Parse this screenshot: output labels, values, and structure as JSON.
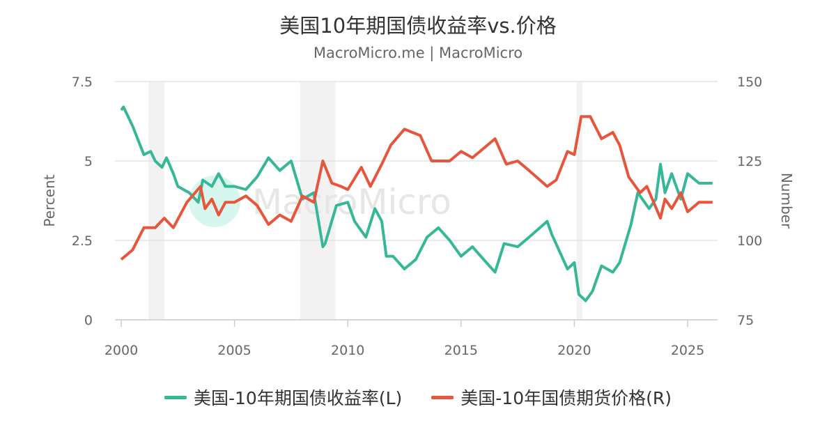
{
  "title": "美国10年期国债收益率vs.价格",
  "subtitle": "MacroMicro.me | MacroMicro",
  "watermark": "MacroMicro",
  "chart_data": {
    "type": "line",
    "title": "美国10年期国债收益率vs.价格",
    "left_axis": {
      "label": "Percent",
      "range": [
        0,
        7.5
      ],
      "ticks": [
        "0",
        "2.5",
        "5",
        "7.5"
      ],
      "tick_values": [
        0,
        2.5,
        5,
        7.5
      ]
    },
    "right_axis": {
      "label": "Number",
      "range": [
        75,
        150
      ],
      "ticks": [
        "75",
        "100",
        "125",
        "150"
      ],
      "tick_values": [
        75,
        100,
        125,
        150
      ]
    },
    "x_axis": {
      "range": [
        2000,
        2026.2
      ],
      "ticks": [
        "2000",
        "2005",
        "2010",
        "2015",
        "2020",
        "2025"
      ],
      "tick_values": [
        2000,
        2005,
        2010,
        2015,
        2020,
        2025
      ]
    },
    "grid": true,
    "legend_position": "bottom",
    "recessions": [
      [
        2001.2,
        2001.9
      ],
      [
        2007.9,
        2009.45
      ],
      [
        2020.1,
        2020.35
      ]
    ],
    "series": [
      {
        "name": "美国-10年期国债收益率(L)",
        "axis": "left",
        "color": "#36b898",
        "x": [
          2000.0,
          2000.1,
          2000.5,
          2001.0,
          2001.3,
          2001.5,
          2001.8,
          2002.0,
          2002.3,
          2002.5,
          2003.0,
          2003.4,
          2003.6,
          2004.0,
          2004.3,
          2004.6,
          2005.0,
          2005.5,
          2006.0,
          2006.5,
          2007.0,
          2007.5,
          2008.0,
          2008.5,
          2008.9,
          2009.0,
          2009.5,
          2010.0,
          2010.3,
          2010.8,
          2011.2,
          2011.5,
          2011.7,
          2012.0,
          2012.5,
          2013.0,
          2013.5,
          2014.0,
          2014.5,
          2015.0,
          2015.5,
          2016.0,
          2016.5,
          2016.9,
          2017.5,
          2018.0,
          2018.8,
          2019.0,
          2019.7,
          2020.0,
          2020.2,
          2020.5,
          2020.8,
          2021.2,
          2021.7,
          2022.0,
          2022.5,
          2022.8,
          2023.3,
          2023.6,
          2023.8,
          2024.0,
          2024.3,
          2024.7,
          2025.0,
          2025.5,
          2026.1
        ],
        "values": [
          6.6,
          6.7,
          6.1,
          5.2,
          5.3,
          5.0,
          4.8,
          5.1,
          4.6,
          4.2,
          4.0,
          3.7,
          4.4,
          4.2,
          4.6,
          4.2,
          4.2,
          4.1,
          4.5,
          5.1,
          4.7,
          5.0,
          3.8,
          4.0,
          2.3,
          2.4,
          3.6,
          3.7,
          3.1,
          2.6,
          3.5,
          3.1,
          2.0,
          2.0,
          1.6,
          1.9,
          2.6,
          2.9,
          2.5,
          2.0,
          2.3,
          1.9,
          1.5,
          2.4,
          2.3,
          2.6,
          3.1,
          2.7,
          1.6,
          1.8,
          0.8,
          0.6,
          0.9,
          1.7,
          1.5,
          1.8,
          3.0,
          4.0,
          3.5,
          3.8,
          4.9,
          4.0,
          4.6,
          3.8,
          4.6,
          4.3,
          4.3
        ]
      },
      {
        "name": "美国-10年国债期货价格(R)",
        "axis": "right",
        "color": "#e8553d",
        "x": [
          2000.0,
          2000.5,
          2001.0,
          2001.5,
          2001.9,
          2002.3,
          2002.9,
          2003.5,
          2003.7,
          2004.0,
          2004.3,
          2004.6,
          2005.0,
          2005.5,
          2006.0,
          2006.5,
          2007.0,
          2007.5,
          2008.0,
          2008.5,
          2008.9,
          2009.3,
          2009.7,
          2010.0,
          2010.6,
          2011.0,
          2011.5,
          2011.9,
          2012.5,
          2013.2,
          2013.7,
          2014.5,
          2015.0,
          2015.5,
          2016.5,
          2017.0,
          2017.5,
          2018.0,
          2018.8,
          2019.2,
          2019.7,
          2020.0,
          2020.3,
          2020.7,
          2021.2,
          2021.7,
          2022.0,
          2022.4,
          2022.9,
          2023.2,
          2023.8,
          2024.0,
          2024.3,
          2024.7,
          2025.0,
          2025.5,
          2026.1
        ],
        "values": [
          94,
          97,
          104,
          104,
          107,
          104,
          112,
          117,
          110,
          113,
          108,
          112,
          112,
          114,
          111,
          105,
          108,
          106,
          114,
          112,
          125,
          118,
          117,
          116,
          123,
          117,
          124,
          130,
          135,
          133,
          125,
          125,
          128,
          126,
          132,
          124,
          125,
          122,
          117,
          119,
          128,
          127,
          139,
          139,
          132,
          134,
          130,
          120,
          115,
          117,
          107,
          113,
          110,
          115,
          109,
          112,
          112
        ]
      }
    ]
  }
}
